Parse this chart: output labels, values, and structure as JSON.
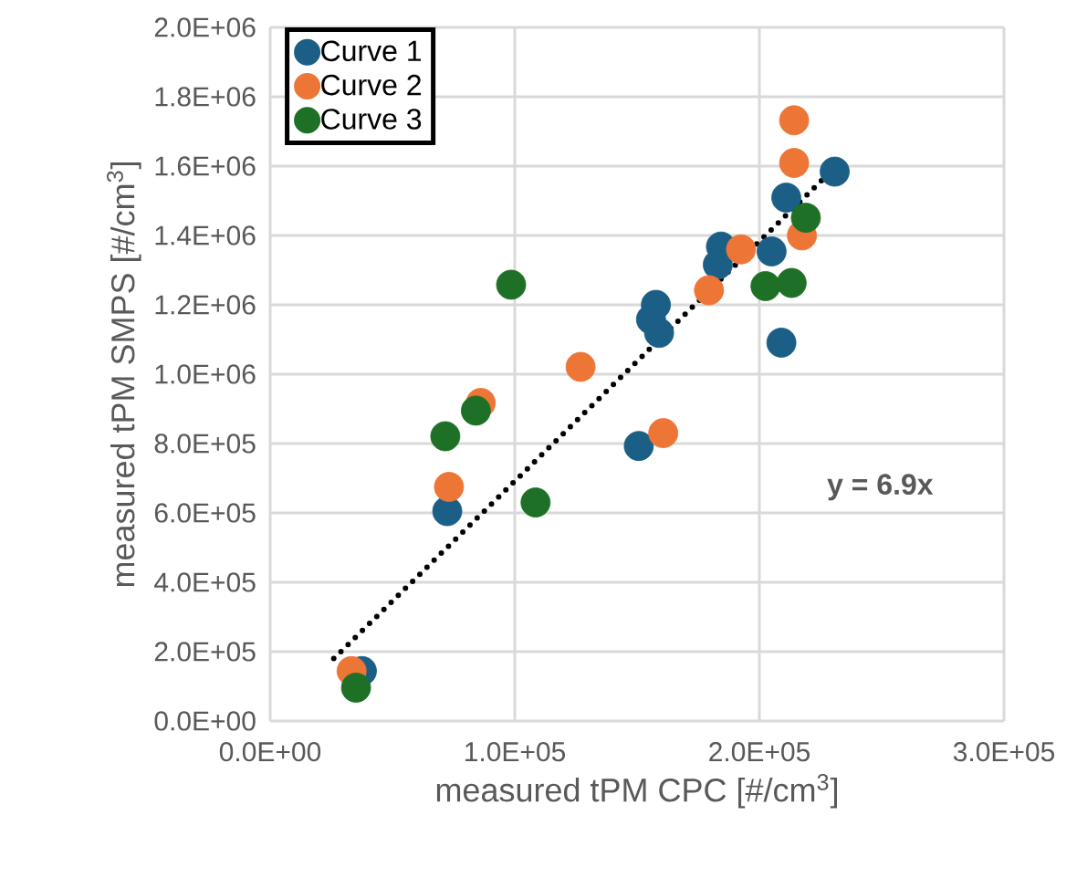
{
  "chart_data": {
    "type": "scatter",
    "xlabel": "measured tPM CPC [#/cm$^{3}$]",
    "ylabel": "measured tPM SMPS  [#/cm$^{3}$]",
    "xlim": [
      0,
      300000
    ],
    "ylim": [
      0,
      2000000
    ],
    "xticks": [
      {
        "value": 0,
        "label": "0.0E+00"
      },
      {
        "value": 100000,
        "label": "1.0E+05"
      },
      {
        "value": 200000,
        "label": "2.0E+05"
      },
      {
        "value": 300000,
        "label": "3.0E+05"
      }
    ],
    "yticks": [
      {
        "value": 0,
        "label": "0.0E+00"
      },
      {
        "value": 200000,
        "label": "2.0E+05"
      },
      {
        "value": 400000,
        "label": "4.0E+05"
      },
      {
        "value": 600000,
        "label": "6.0E+05"
      },
      {
        "value": 800000,
        "label": "8.0E+05"
      },
      {
        "value": 1000000,
        "label": "1.0E+06"
      },
      {
        "value": 1200000,
        "label": "1.2E+06"
      },
      {
        "value": 1400000,
        "label": "1.4E+06"
      },
      {
        "value": 1600000,
        "label": "1.6E+06"
      },
      {
        "value": 1800000,
        "label": "1.8E+06"
      },
      {
        "value": 2000000,
        "label": "2.0E+06"
      }
    ],
    "grid": true,
    "legend": "top left",
    "marker": "circle",
    "series": [
      {
        "name": "Curve 1",
        "color": "#1b5e86",
        "x": [
          37500,
          72400,
          150700,
          157700,
          155700,
          159000,
          184300,
          183000,
          205000,
          209000,
          211000,
          230800
        ],
        "values": [
          144000,
          605000,
          793000,
          1200000,
          1158000,
          1119000,
          1368000,
          1316000,
          1354000,
          1091000,
          1509000,
          1584000
        ]
      },
      {
        "name": "Curve 2",
        "color": "#ed7535",
        "x": [
          33300,
          73100,
          86100,
          126900,
          160700,
          179400,
          192500,
          214200,
          214200,
          217400
        ],
        "values": [
          144000,
          675000,
          917000,
          1021000,
          830000,
          1242000,
          1360000,
          1732000,
          1609000,
          1400000
        ]
      },
      {
        "name": "Curve 3",
        "color": "#1e7026",
        "x": [
          35100,
          71600,
          84100,
          98500,
          108500,
          202500,
          213200,
          219000
        ],
        "values": [
          96000,
          821000,
          895000,
          1258000,
          630000,
          1254000,
          1263000,
          1451000
        ]
      },
      {
        "type": "line",
        "color": "#000000",
        "line_style": "dotted",
        "marker": "none",
        "x": [
          26000,
          230000
        ],
        "values": [
          180000,
          1590000
        ]
      }
    ],
    "annotations": [
      "y = 6.9x"
    ]
  }
}
